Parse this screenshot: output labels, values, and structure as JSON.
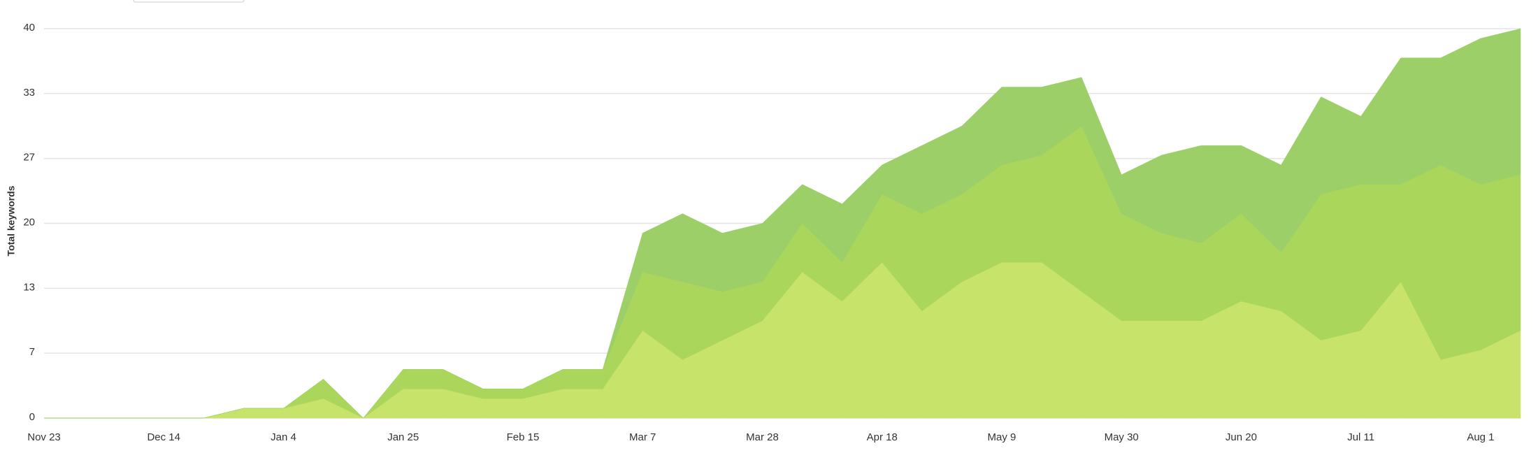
{
  "chart_data": {
    "type": "stacked-area",
    "y_label": "Total keywords",
    "categories": [
      "Nov 23",
      null,
      null,
      "Dec 14",
      null,
      null,
      "Jan 4",
      null,
      null,
      "Jan 25",
      null,
      null,
      "Feb 15",
      null,
      null,
      "Mar 7",
      null,
      null,
      "Mar 28",
      null,
      null,
      "Apr 18",
      null,
      null,
      "May 9",
      null,
      null,
      "May 30",
      null,
      null,
      "Jun 20",
      null,
      null,
      "Jul 11",
      null,
      null,
      "Aug 1",
      null
    ],
    "series": [
      {
        "color": "#c8e36a",
        "values": [
          0,
          0,
          0,
          0,
          0,
          1,
          1,
          2,
          0,
          3,
          3,
          2,
          2,
          3,
          3,
          9,
          6,
          8,
          10,
          15,
          12,
          16,
          11,
          14,
          16,
          16,
          13,
          10,
          10,
          10,
          12,
          11,
          8,
          9,
          14,
          6,
          7,
          9
        ]
      },
      {
        "color": "#a9d65b",
        "values": [
          0,
          0,
          0,
          0,
          0,
          0,
          0,
          2,
          0,
          2,
          2,
          1,
          1,
          2,
          2,
          6,
          8,
          5,
          4,
          5,
          4,
          7,
          10,
          9,
          10,
          11,
          17,
          11,
          9,
          8,
          9,
          6,
          15,
          15,
          10,
          20,
          17,
          16
        ]
      },
      {
        "color": "#9dcf68",
        "values": [
          0,
          0,
          0,
          0,
          0,
          0,
          0,
          0,
          0,
          0,
          0,
          0,
          0,
          0,
          0,
          4,
          7,
          6,
          6,
          4,
          6,
          3,
          7,
          7,
          8,
          7,
          5,
          4,
          8,
          10,
          7,
          9,
          10,
          7,
          13,
          11,
          15,
          15
        ]
      }
    ],
    "ylim": [
      0,
      40
    ],
    "yticks": [
      0,
      {
        "value": 6.667,
        "label": "7"
      },
      {
        "value": 13.333,
        "label": "13"
      },
      20,
      {
        "value": 26.667,
        "label": "27"
      },
      {
        "value": 33.333,
        "label": "33"
      },
      40
    ],
    "grid": true
  }
}
